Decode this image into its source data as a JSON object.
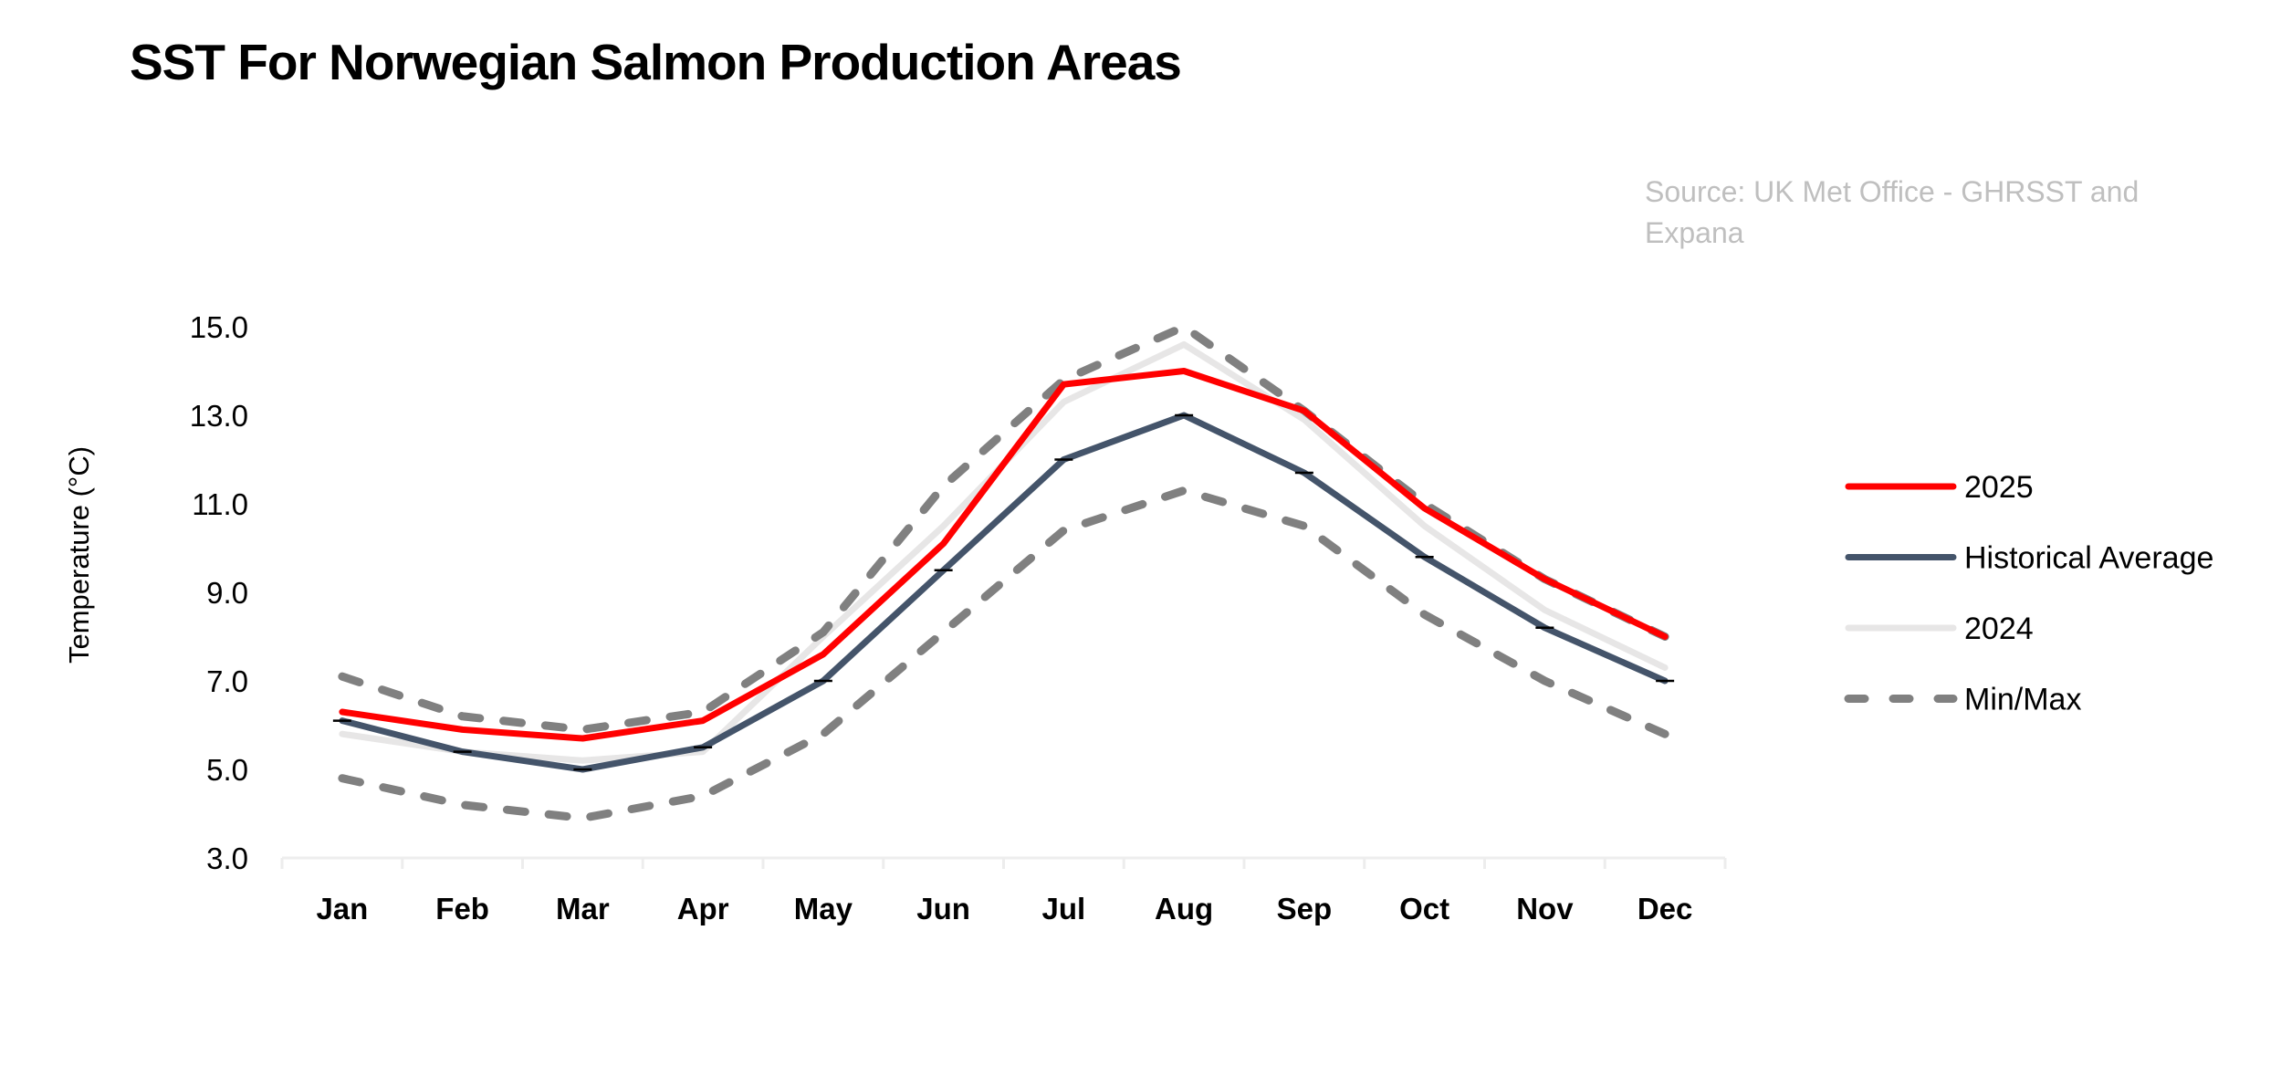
{
  "chart_data": {
    "type": "line",
    "title": "SST For Norwegian Salmon Production Areas",
    "source": "Source: UK Met Office - GHRSST  and Expana",
    "xlabel": "",
    "ylabel": "Temperature (°C)",
    "categories": [
      "Jan",
      "Feb",
      "Mar",
      "Apr",
      "May",
      "Jun",
      "Jul",
      "Aug",
      "Sep",
      "Oct",
      "Nov",
      "Dec"
    ],
    "ylim": [
      3.0,
      15.0
    ],
    "yticks": [
      "3.0",
      "5.0",
      "7.0",
      "9.0",
      "11.0",
      "13.0",
      "15.0"
    ],
    "grid": false,
    "legend_position": "right",
    "series": [
      {
        "name": "2025",
        "color": "#FF0000",
        "style": "solid",
        "values": [
          6.3,
          5.9,
          5.7,
          6.1,
          7.6,
          10.1,
          13.7,
          14.0,
          13.1,
          10.9,
          9.3,
          8.0
        ]
      },
      {
        "name": "Historical Average",
        "color": "#44546A",
        "style": "solid",
        "values": [
          6.1,
          5.4,
          5.0,
          5.5,
          7.0,
          9.5,
          12.0,
          13.0,
          11.7,
          9.8,
          8.2,
          7.0
        ]
      },
      {
        "name": "2024",
        "color": "#E7E6E6",
        "style": "solid",
        "values": [
          5.8,
          5.4,
          5.2,
          5.4,
          8.0,
          10.5,
          13.3,
          14.6,
          12.9,
          10.5,
          8.6,
          7.3
        ]
      },
      {
        "name": "Max",
        "legend_name": "Min/Max",
        "color": "#808080",
        "style": "dashed",
        "values": [
          7.1,
          6.2,
          5.9,
          6.3,
          8.1,
          11.4,
          13.8,
          15.0,
          13.1,
          11.0,
          9.3,
          8.0
        ]
      },
      {
        "name": "Min",
        "legend_name": "Min/Max",
        "color": "#808080",
        "style": "dashed",
        "values": [
          4.8,
          4.2,
          3.9,
          4.4,
          5.8,
          8.1,
          10.4,
          11.3,
          10.5,
          8.5,
          7.0,
          5.8
        ]
      }
    ],
    "legend": [
      {
        "label": "2025",
        "color": "#FF0000",
        "style": "solid"
      },
      {
        "label": "Historical Average",
        "color": "#44546A",
        "style": "solid"
      },
      {
        "label": "2024",
        "color": "#E7E6E6",
        "style": "solid"
      },
      {
        "label": "Min/Max",
        "color": "#808080",
        "style": "dashed"
      }
    ]
  }
}
